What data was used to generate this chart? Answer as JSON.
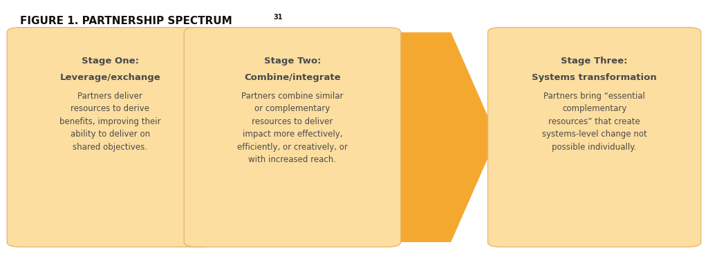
{
  "title": "FIGURE 1. PARTNERSHIP SPECTRUM",
  "superscript": "31",
  "background_color": "#ffffff",
  "box_fill_color": "#FCDEA0",
  "arrow_color": "#F5A830",
  "box_edge_color": "#E8B870",
  "text_color": "#4a4a4a",
  "title_color": "#111111",
  "fig_width": 10.24,
  "fig_height": 3.9,
  "stages": [
    {
      "title_line1": "Stage One:",
      "title_line2": "Leverage/exchange",
      "body": "Partners deliver\nresources to derive\nbenefits, improving their\nability to deliver on\nshared objectives."
    },
    {
      "title_line1": "Stage Two:",
      "title_line2": "Combine/integrate",
      "body": "Partners combine similar\nor complementary\nresources to deliver\nimpact more effectively,\nefficiently, or creatively, or\nwith increased reach."
    },
    {
      "title_line1": "Stage Three:",
      "title_line2": "Systems transformation",
      "body": "Partners bring “essential\ncomplementary\nresources” that create\nsystems-level change not\npossible individually."
    }
  ]
}
